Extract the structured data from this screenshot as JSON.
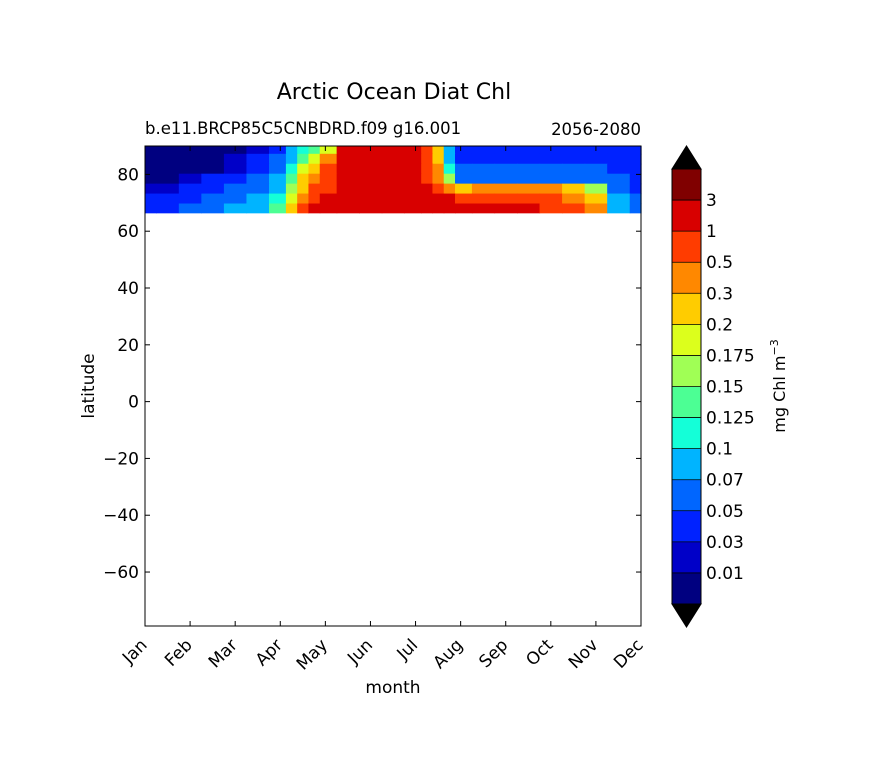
{
  "chart_data": {
    "type": "heatmap",
    "title": "Arctic Ocean Diat Chl",
    "subtitle_left": "b.e11.BRCP85C5CNBDRD.f09 g16.001",
    "subtitle_right": "2056-2080",
    "xlabel": "month",
    "ylabel": "latitude",
    "x_tick_labels": [
      "Jan",
      "Feb",
      "Mar",
      "Apr",
      "May",
      "Jun",
      "Jul",
      "Aug",
      "Sep",
      "Oct",
      "Nov",
      "Dec"
    ],
    "y_ticks": [
      80,
      60,
      40,
      20,
      0,
      -20,
      -40,
      -60
    ],
    "y_tick_labels": [
      "80",
      "60",
      "40",
      "20",
      "0",
      "−20",
      "−40",
      "−60"
    ],
    "xlim": [
      1,
      12
    ],
    "ylim": [
      -79,
      90
    ],
    "data_lat_range": [
      66.5,
      90
    ],
    "colorbar": {
      "label": "mg Chl m",
      "label_superscript": "−3",
      "levels": [
        0.01,
        0.03,
        0.05,
        0.07,
        0.1,
        0.125,
        0.15,
        0.175,
        0.2,
        0.3,
        0.5,
        1,
        3
      ],
      "level_labels": [
        "0.01",
        "0.03",
        "0.05",
        "0.07",
        "0.1",
        "0.125",
        "0.15",
        "0.175",
        "0.2",
        "0.3",
        "0.5",
        "1",
        "3"
      ],
      "colors": [
        "#000080",
        "#0000c8",
        "#0022ff",
        "#0066ff",
        "#00b4ff",
        "#14ffd8",
        "#4cff94",
        "#a0ff55",
        "#dcff1c",
        "#ffcc00",
        "#ff8800",
        "#ff3c00",
        "#d80000",
        "#800000"
      ],
      "under_color": "#000000",
      "over_color": "#000000",
      "extend": "both"
    },
    "latitudes": [
      89,
      85.5,
      82,
      78.5,
      75,
      71.5,
      68
    ],
    "months": [
      1,
      1.5,
      2,
      2.5,
      3,
      3.5,
      4,
      4.25,
      4.5,
      4.75,
      5,
      5.5,
      6,
      6.5,
      7,
      7.25,
      7.5,
      7.75,
      8,
      8.5,
      9,
      9.5,
      10,
      10.5,
      11,
      11.5,
      12
    ],
    "values": [
      [
        0.005,
        0.005,
        0.005,
        0.005,
        0.005,
        0.02,
        0.04,
        0.07,
        0.11,
        0.14,
        0.19,
        1.5,
        2.0,
        2.0,
        1.5,
        0.5,
        0.2,
        0.08,
        0.04,
        0.04,
        0.04,
        0.04,
        0.04,
        0.04,
        0.04,
        0.04,
        0.04
      ],
      [
        0.005,
        0.005,
        0.005,
        0.005,
        0.01,
        0.03,
        0.05,
        0.09,
        0.14,
        0.18,
        0.35,
        1.5,
        2.0,
        2.0,
        1.5,
        0.6,
        0.25,
        0.09,
        0.04,
        0.04,
        0.04,
        0.04,
        0.04,
        0.04,
        0.04,
        0.04,
        0.04
      ],
      [
        0.005,
        0.005,
        0.005,
        0.005,
        0.02,
        0.04,
        0.06,
        0.11,
        0.18,
        0.25,
        0.6,
        1.5,
        2.0,
        2.0,
        1.5,
        0.7,
        0.3,
        0.11,
        0.05,
        0.05,
        0.05,
        0.05,
        0.05,
        0.05,
        0.05,
        0.04,
        0.04
      ],
      [
        0.005,
        0.005,
        0.02,
        0.03,
        0.04,
        0.05,
        0.07,
        0.13,
        0.22,
        0.4,
        0.8,
        1.5,
        2.0,
        2.0,
        1.6,
        0.8,
        0.4,
        0.15,
        0.06,
        0.06,
        0.06,
        0.06,
        0.06,
        0.06,
        0.06,
        0.05,
        0.04
      ],
      [
        0.02,
        0.02,
        0.03,
        0.04,
        0.05,
        0.06,
        0.09,
        0.16,
        0.25,
        0.5,
        0.9,
        1.6,
        2.0,
        2.0,
        1.8,
        1.0,
        0.5,
        0.3,
        0.25,
        0.3,
        0.35,
        0.3,
        0.3,
        0.25,
        0.15,
        0.06,
        0.04
      ],
      [
        0.03,
        0.03,
        0.04,
        0.05,
        0.06,
        0.08,
        0.12,
        0.18,
        0.35,
        0.7,
        1.2,
        1.8,
        2.0,
        2.0,
        2.0,
        1.5,
        1.2,
        1.0,
        0.8,
        0.6,
        0.6,
        0.55,
        0.5,
        0.4,
        0.25,
        0.08,
        0.05
      ],
      [
        0.04,
        0.04,
        0.05,
        0.06,
        0.07,
        0.09,
        0.14,
        0.25,
        0.6,
        1.5,
        1.8,
        2.2,
        2.8,
        2.8,
        2.5,
        2.2,
        2.0,
        1.8,
        1.5,
        1.3,
        1.2,
        1.0,
        0.9,
        0.7,
        0.3,
        0.08,
        0.05
      ]
    ]
  }
}
